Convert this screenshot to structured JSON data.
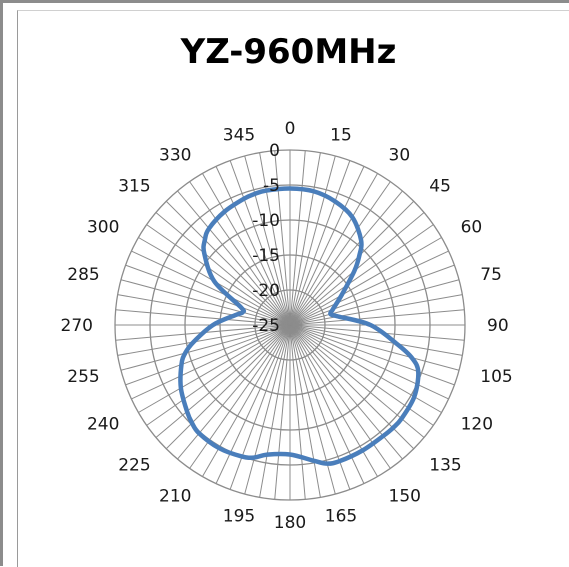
{
  "chart_data": {
    "type": "radar",
    "title": "YZ-960MHz",
    "angular_unit": "degrees",
    "angular_ticks": [
      "0",
      "15",
      "30",
      "45",
      "60",
      "75",
      "90",
      "105",
      "120",
      "135",
      "150",
      "165",
      "180",
      "195",
      "210",
      "225",
      "240",
      "255",
      "270",
      "285",
      "300",
      "315",
      "330",
      "345"
    ],
    "radial_ticks": [
      "0",
      "-5",
      "-10",
      "-15",
      "-20",
      "-25"
    ],
    "rlim": [
      -25,
      0
    ],
    "grid": true,
    "legend": "none",
    "line_color": "#4a7ebb",
    "grid_color": "#8c8c8c",
    "series": [
      {
        "angles": [
          0,
          10,
          20,
          30,
          40,
          45,
          50,
          60,
          70,
          75,
          80,
          90,
          100,
          105,
          110,
          120,
          130,
          135,
          140,
          150,
          160,
          165,
          170,
          180,
          190,
          195,
          200,
          210,
          220,
          225,
          230,
          240,
          250,
          255,
          260,
          270,
          280,
          285,
          290,
          300,
          310,
          315,
          320,
          330,
          340,
          345,
          350
        ],
        "values": [
          -5.5,
          -5.6,
          -6.2,
          -7.2,
          -9.2,
          -11.0,
          -13.0,
          -16.5,
          -18.5,
          -19.0,
          -18.0,
          -13.5,
          -9.5,
          -7.0,
          -5.5,
          -4.5,
          -4.2,
          -4.2,
          -4.3,
          -4.3,
          -4.3,
          -4.5,
          -5.3,
          -6.5,
          -6.2,
          -5.4,
          -5.0,
          -4.7,
          -4.8,
          -5.2,
          -5.8,
          -7.0,
          -8.5,
          -9.5,
          -11.0,
          -14.0,
          -17.0,
          -18.0,
          -17.5,
          -12.5,
          -9.0,
          -7.8,
          -7.0,
          -6.3,
          -5.8,
          -5.6,
          -5.5
        ]
      }
    ]
  }
}
